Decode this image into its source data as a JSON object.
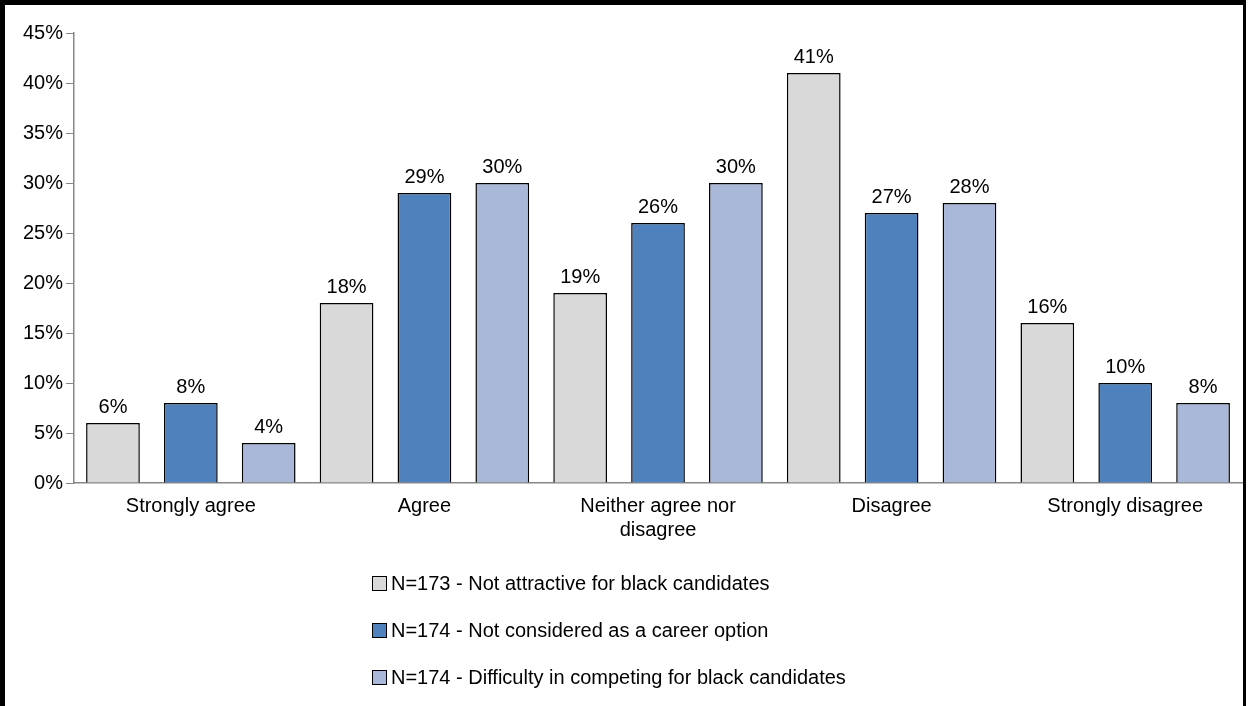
{
  "chart_data": {
    "type": "bar",
    "categories": [
      "Strongly agree",
      "Agree",
      "Neither agree nor disagree",
      "Disagree",
      "Strongly disagree"
    ],
    "series": [
      {
        "name": "N=173 - Not attractive for black candidates",
        "color": "#d9d9d9",
        "values": [
          6,
          18,
          19,
          41,
          16
        ],
        "value_labels": [
          "6%",
          "18%",
          "19%",
          "41%",
          "16%"
        ]
      },
      {
        "name": "N=174 - Not considered as a career option",
        "color": "#4f81bd",
        "values": [
          8,
          29,
          26,
          27,
          10
        ],
        "value_labels": [
          "8%",
          "29%",
          "26%",
          "27%",
          "10%"
        ]
      },
      {
        "name": "N=174 - Difficulty in competing for black candidates",
        "color": "#a9b8d8",
        "values": [
          4,
          30,
          30,
          28,
          8
        ],
        "value_labels": [
          "4%",
          "30%",
          "30%",
          "28%",
          "8%"
        ]
      }
    ],
    "ylim": [
      0,
      45
    ],
    "yticks": [
      {
        "value": 0,
        "label": "0%"
      },
      {
        "value": 5,
        "label": "5%"
      },
      {
        "value": 10,
        "label": "10%"
      },
      {
        "value": 15,
        "label": "15%"
      },
      {
        "value": 20,
        "label": "20%"
      },
      {
        "value": 25,
        "label": "25%"
      },
      {
        "value": 30,
        "label": "30%"
      },
      {
        "value": 35,
        "label": "35%"
      },
      {
        "value": 40,
        "label": "40%"
      },
      {
        "value": 45,
        "label": "45%"
      }
    ],
    "grid": false,
    "legend": "bottom"
  }
}
